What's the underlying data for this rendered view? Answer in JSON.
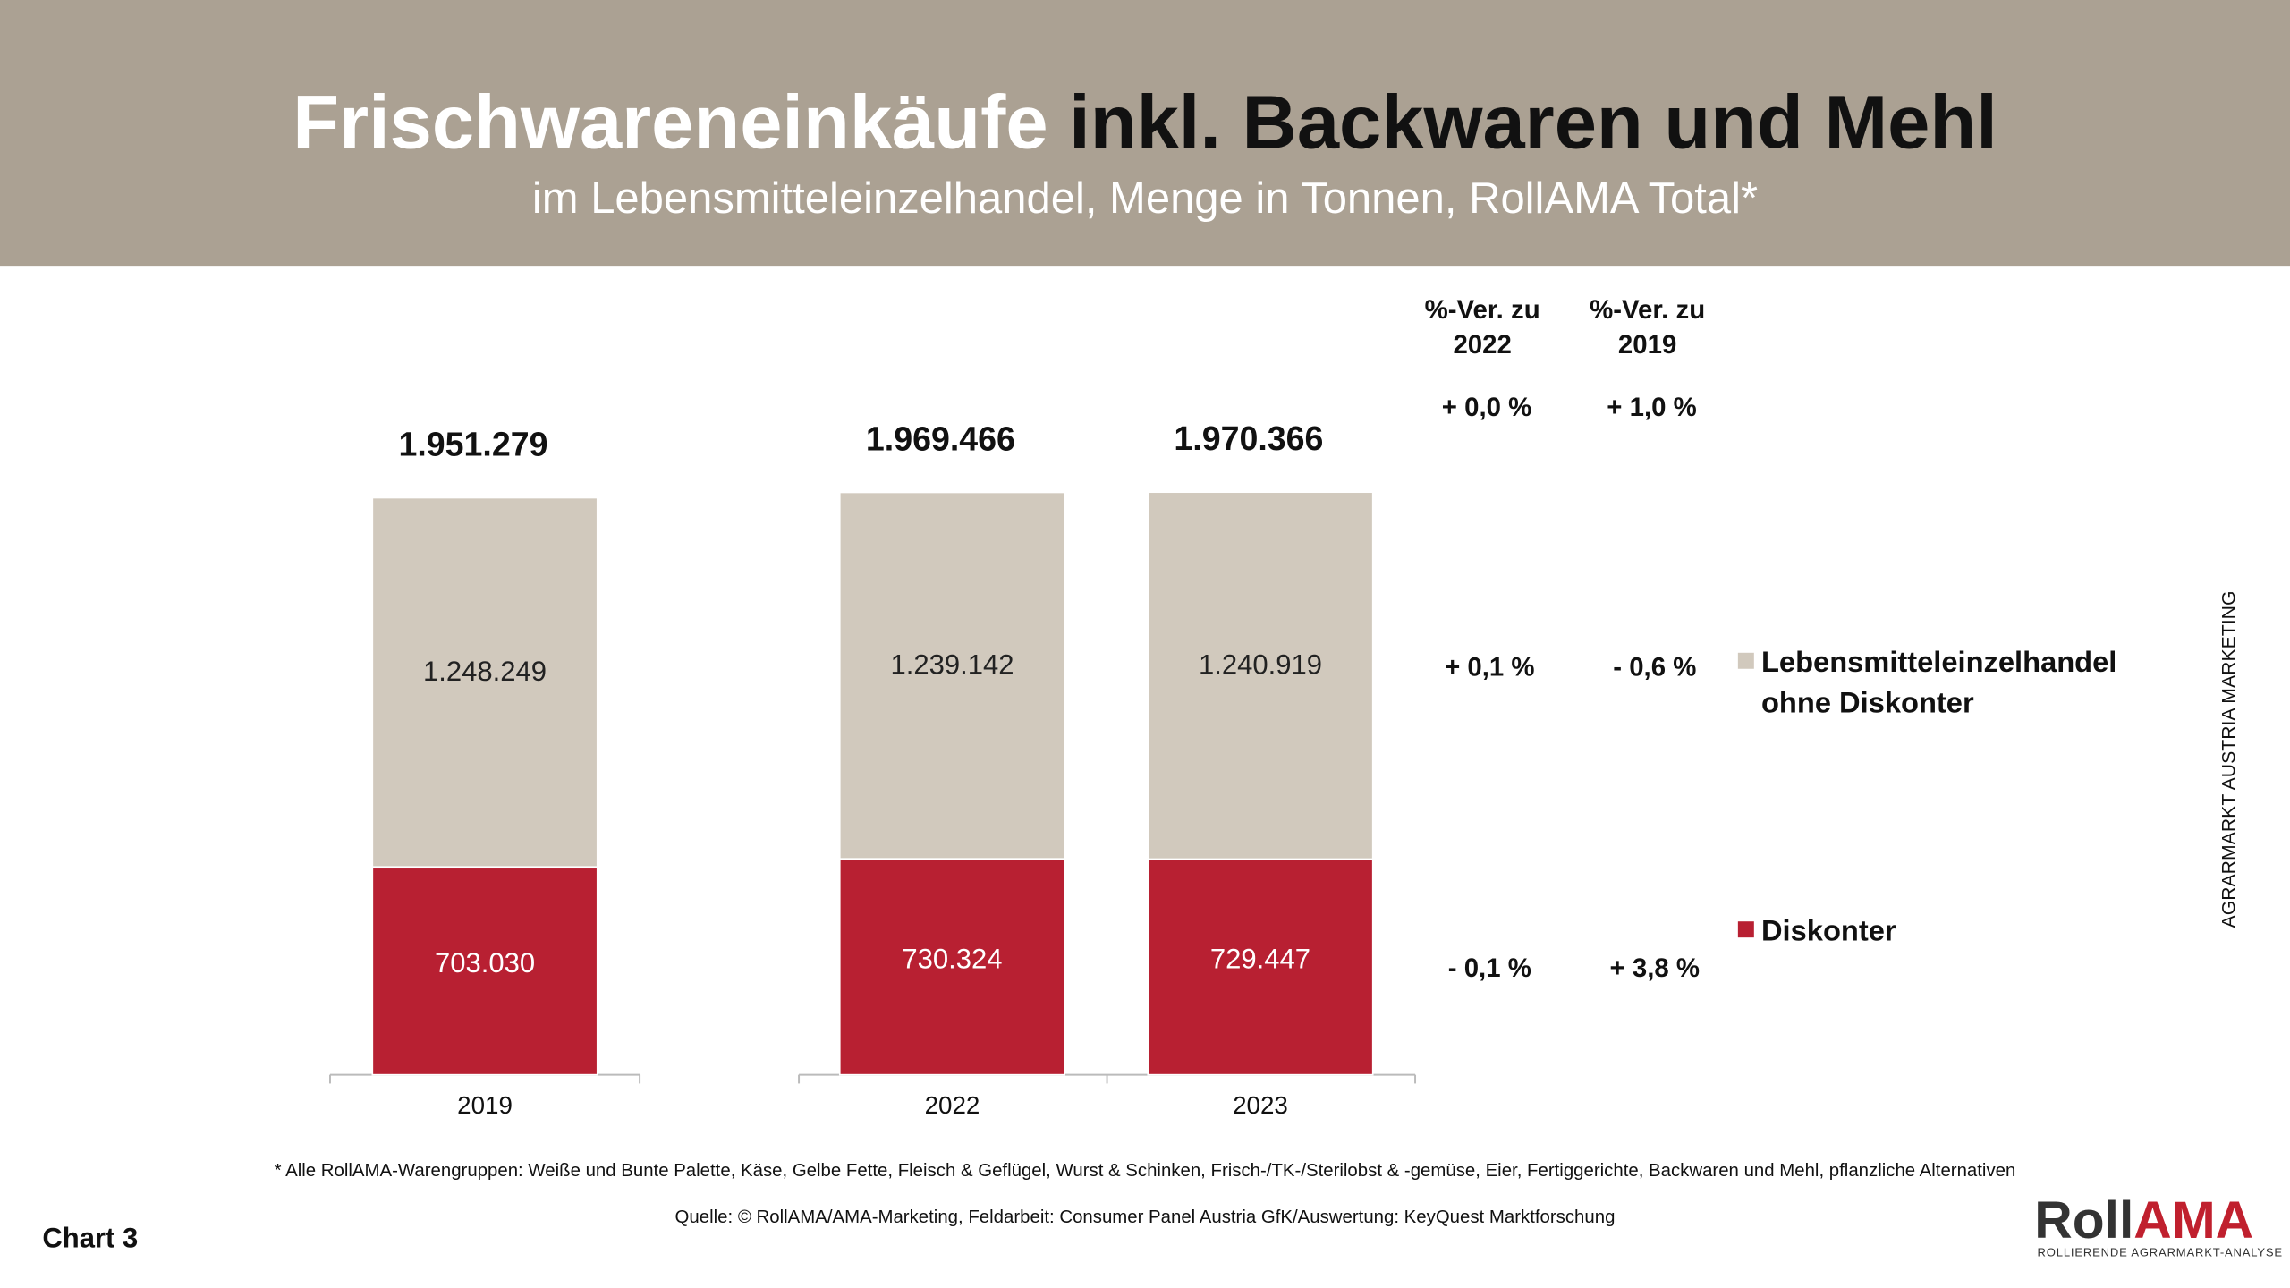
{
  "chart_data": {
    "type": "stacked_bar",
    "title_part1": "Frischwareneinkäufe",
    "title_part2": "inkl. Backwaren und Mehl",
    "subtitle": "im Lebensmitteleinzelhandel, Menge in Tonnen, RollAMA Total*",
    "categories": [
      "2019",
      "2022",
      "2023"
    ],
    "series": [
      {
        "name": "Diskonter",
        "color": "#b82032",
        "values": [
          703030,
          730324,
          729447
        ],
        "value_labels": [
          "703.030",
          "730.324",
          "729.447"
        ]
      },
      {
        "name": "Lebensmitteleinzelhandel ohne Diskonter",
        "color": "#d1c9bd",
        "values": [
          1248249,
          1239142,
          1240919
        ],
        "value_labels": [
          "1.248.249",
          "1.239.142",
          "1.240.919"
        ]
      }
    ],
    "totals": {
      "values": [
        1951279,
        1969466,
        1970366
      ],
      "value_labels": [
        "1.951.279",
        "1.969.466",
        "1.970.366"
      ]
    },
    "change_table": {
      "headers": [
        "%-Ver. zu 2022",
        "%-Ver. zu 2019"
      ],
      "total": [
        "+ 0,0 %",
        "+ 1,0 %"
      ],
      "rows": [
        [
          "- 0,1 %",
          "+ 3,8 %"
        ],
        [
          "+ 0,1 %",
          "- 0,6 %"
        ]
      ]
    },
    "footnote": "* Alle RollAMA-Warengruppen: Weiße und Bunte Palette, Käse, Gelbe Fette, Fleisch & Geflügel, Wurst & Schinken, Frisch-/TK-/Sterilobst & -gemüse, Eier, Fertiggerichte, Backwaren und Mehl, pflanzliche Alternativen",
    "source": "Quelle: © RollAMA/AMA-Marketing, Feldarbeit: Consumer Panel Austria GfK/Auswertung: KeyQuest Marktforschung",
    "chart_label": "Chart 3",
    "side_text": "AGRARMARKT AUSTRIA MARKETING",
    "logo_part1": "Roll",
    "logo_part2": "AMA",
    "logo_tagline": "ROLLIERENDE AGRARMARKT-ANALYSE"
  }
}
